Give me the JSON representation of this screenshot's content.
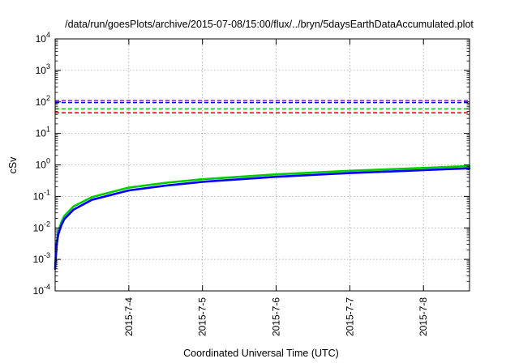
{
  "chart_data": {
    "type": "line",
    "title": "/data/run/goesPlots/archive/2015-07-08/15:00/flux/../bryn/5daysEarthDataAccumulated.plot",
    "xlabel": "Coordinated Universal Time (UTC)",
    "ylabel": "cSv",
    "y_scale": "log",
    "ylim": [
      0.0001,
      10000
    ],
    "y_ticks": [
      {
        "value": 0.0001,
        "base": "10",
        "exp": "-4"
      },
      {
        "value": 0.001,
        "base": "10",
        "exp": "-3"
      },
      {
        "value": 0.01,
        "base": "10",
        "exp": "-2"
      },
      {
        "value": 0.1,
        "base": "10",
        "exp": "-1"
      },
      {
        "value": 1,
        "base": "10",
        "exp": "0"
      },
      {
        "value": 10,
        "base": "10",
        "exp": "1"
      },
      {
        "value": 100,
        "base": "10",
        "exp": "2"
      },
      {
        "value": 1000,
        "base": "10",
        "exp": "3"
      },
      {
        "value": 10000,
        "base": "10",
        "exp": "4"
      }
    ],
    "xlim": [
      "2015-07-03 00:00",
      "2015-07-08 15:00"
    ],
    "x_ticks": [
      {
        "value": "2015-07-04 00:00",
        "label": "2015-7-4"
      },
      {
        "value": "2015-07-05 00:00",
        "label": "2015-7-5"
      },
      {
        "value": "2015-07-06 00:00",
        "label": "2015-7-6"
      },
      {
        "value": "2015-07-07 00:00",
        "label": "2015-7-7"
      },
      {
        "value": "2015-07-08 00:00",
        "label": "2015-7-8"
      }
    ],
    "grid": true,
    "series": [
      {
        "style": "dashed",
        "color": "#a020f0",
        "x": [
          "2015-07-03 00:00",
          "2015-07-08 15:00"
        ],
        "values": [
          110,
          110
        ]
      },
      {
        "style": "dashed",
        "color": "#0000ff",
        "x": [
          "2015-07-03 00:00",
          "2015-07-08 15:00"
        ],
        "values": [
          95,
          95
        ]
      },
      {
        "style": "dashed",
        "color": "#00cc00",
        "x": [
          "2015-07-03 00:00",
          "2015-07-08 15:00"
        ],
        "values": [
          60,
          60
        ]
      },
      {
        "style": "dashed",
        "color": "#ff0000",
        "x": [
          "2015-07-03 00:00",
          "2015-07-08 15:00"
        ],
        "values": [
          45,
          45
        ]
      },
      {
        "style": "solid",
        "color": "#00cc00",
        "x": [
          "2015-07-03 00:00",
          "2015-07-03 00:30",
          "2015-07-03 01:00",
          "2015-07-03 02:00",
          "2015-07-03 03:00",
          "2015-07-03 06:00",
          "2015-07-03 12:00",
          "2015-07-04 00:00",
          "2015-07-04 12:00",
          "2015-07-05 00:00",
          "2015-07-06 00:00",
          "2015-07-07 00:00",
          "2015-07-08 00:00",
          "2015-07-08 15:00"
        ],
        "values": [
          0.0007,
          0.0035,
          0.0075,
          0.015,
          0.024,
          0.048,
          0.095,
          0.19,
          0.27,
          0.35,
          0.5,
          0.65,
          0.8,
          0.92
        ]
      },
      {
        "style": "solid",
        "color": "#0000ff",
        "x": [
          "2015-07-03 00:00",
          "2015-07-03 00:30",
          "2015-07-03 01:00",
          "2015-07-03 02:00",
          "2015-07-03 03:00",
          "2015-07-03 06:00",
          "2015-07-03 12:00",
          "2015-07-04 00:00",
          "2015-07-04 12:00",
          "2015-07-05 00:00",
          "2015-07-06 00:00",
          "2015-07-07 00:00",
          "2015-07-08 00:00",
          "2015-07-08 15:00"
        ],
        "values": [
          0.0005,
          0.0028,
          0.006,
          0.012,
          0.019,
          0.038,
          0.078,
          0.155,
          0.22,
          0.29,
          0.42,
          0.55,
          0.68,
          0.78
        ]
      }
    ]
  }
}
